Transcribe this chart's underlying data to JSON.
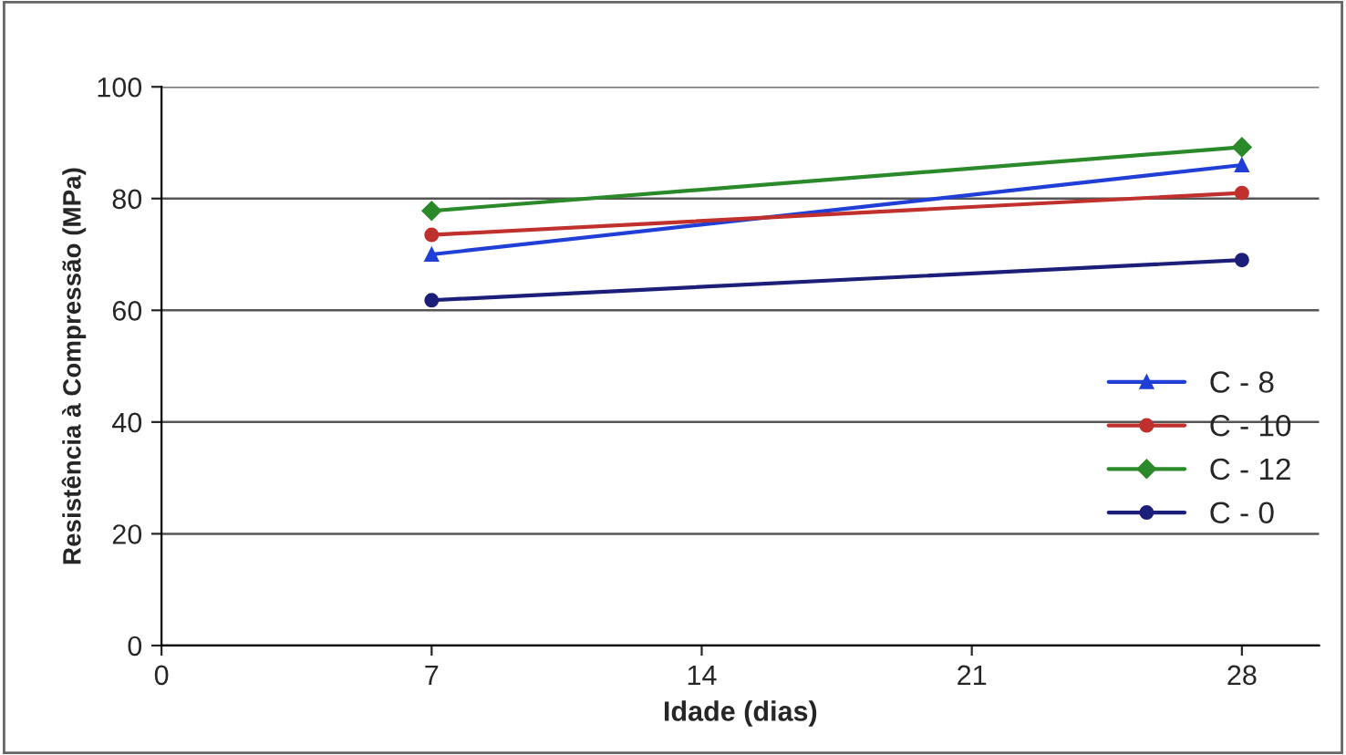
{
  "chart_data": {
    "type": "line",
    "xlabel": "Idade (dias)",
    "ylabel": "Resistência à Compressão (MPa)",
    "x": [
      7,
      28
    ],
    "xlim": [
      0,
      30
    ],
    "xticks": [
      0,
      7,
      14,
      21,
      28
    ],
    "ylim": [
      0,
      100
    ],
    "yticks": [
      0,
      20,
      40,
      60,
      80,
      100
    ],
    "grid": "y",
    "legend": "right",
    "series": [
      {
        "name": "C - 8",
        "color": "#1f3fd6",
        "marker": "triangle",
        "values": [
          70,
          86
        ]
      },
      {
        "name": "C - 10",
        "color": "#c0302c",
        "marker": "circle",
        "values": [
          73.5,
          81
        ]
      },
      {
        "name": "C - 12",
        "color": "#2a8a2a",
        "marker": "diamond",
        "values": [
          77.8,
          89.2
        ]
      },
      {
        "name": "C - 0",
        "color": "#1c1f7a",
        "marker": "circle",
        "values": [
          61.8,
          69
        ]
      }
    ]
  }
}
